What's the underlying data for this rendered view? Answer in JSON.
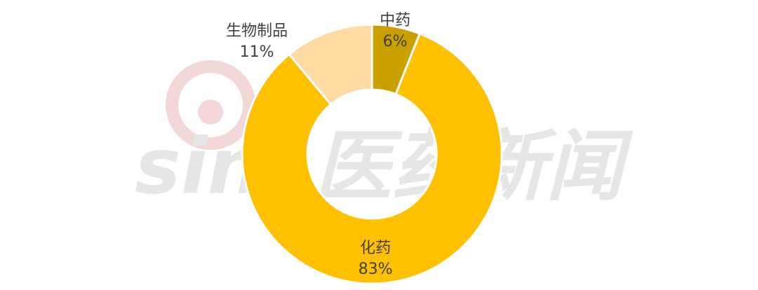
{
  "chart_data": {
    "type": "pie",
    "watermark": "sina医药新闻",
    "categories": [
      "中药",
      "化药",
      "生物制品"
    ],
    "values": [
      6,
      83,
      11
    ],
    "value_labels": [
      "6%",
      "83%",
      "11%"
    ],
    "colors": [
      "#C9A000",
      "#FFC000",
      "#FFDAA3"
    ]
  }
}
